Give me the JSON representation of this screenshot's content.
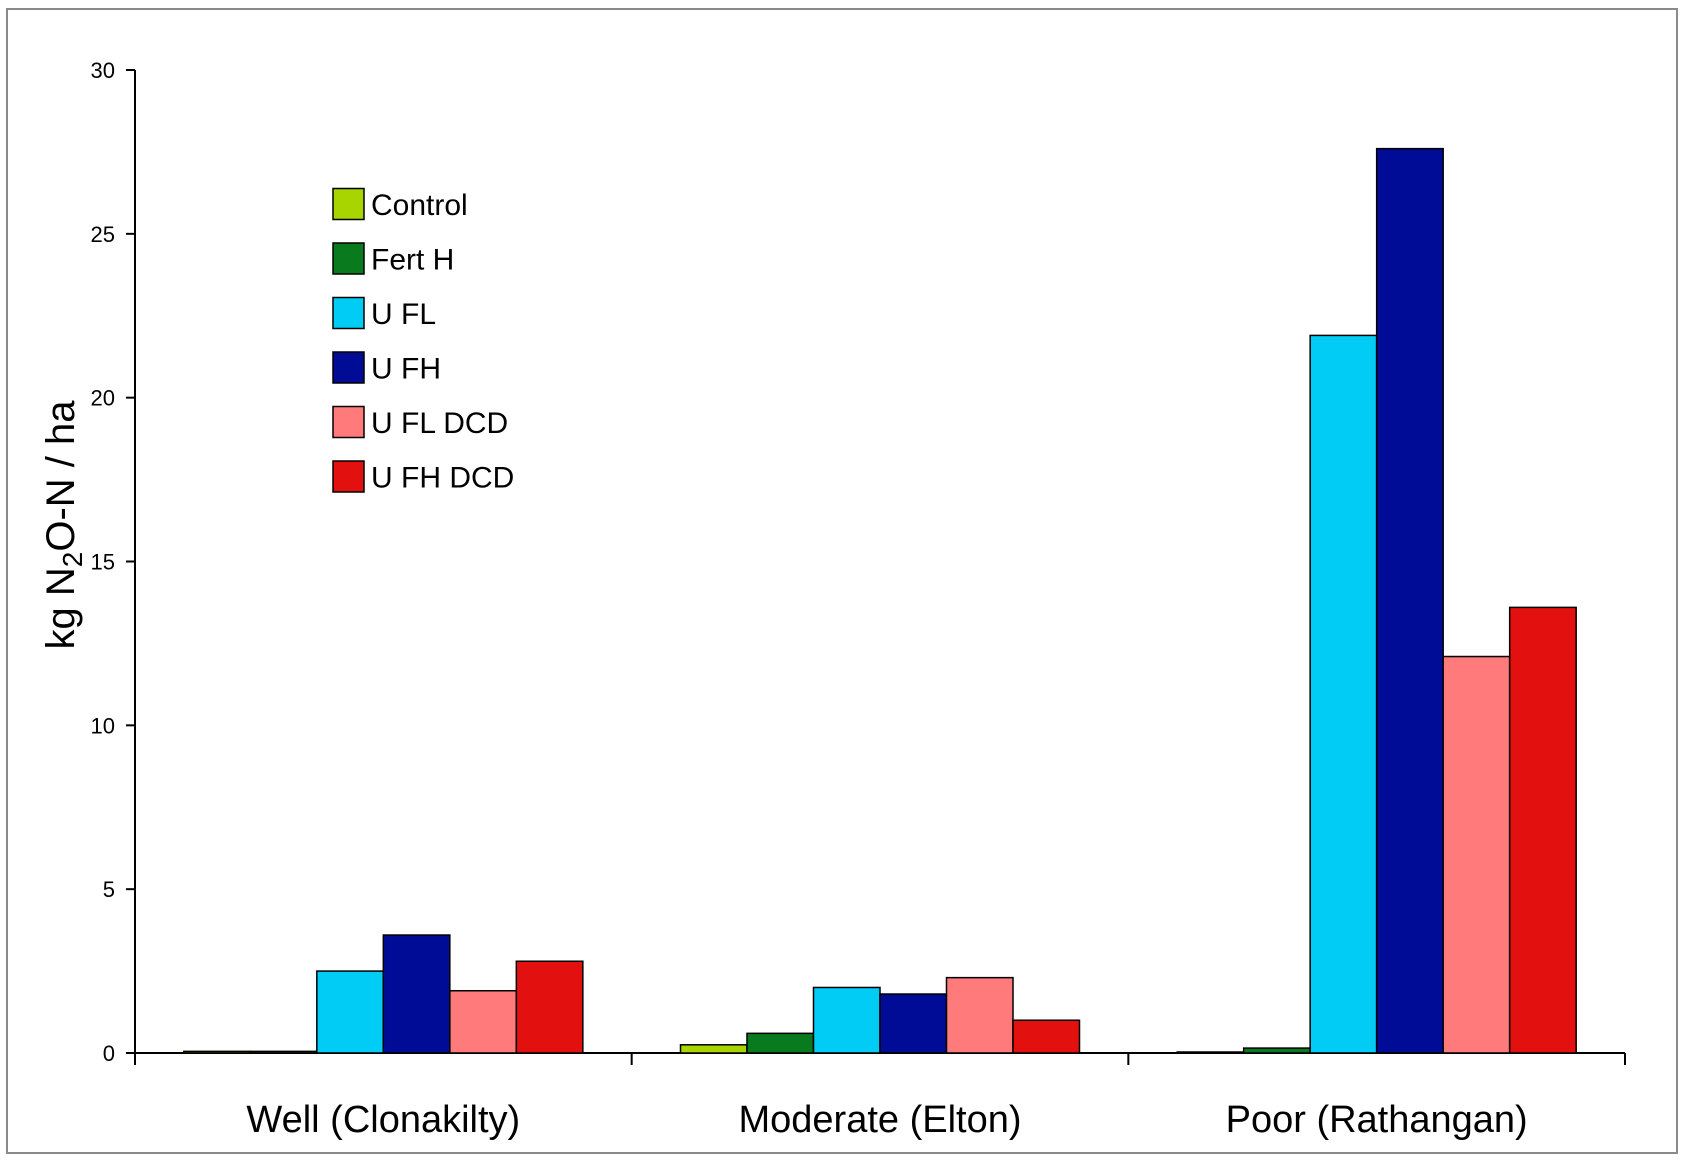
{
  "chart_data": {
    "type": "bar",
    "title": "",
    "xlabel": "",
    "ylabel": {
      "prefix": "kg N",
      "subscript": "2",
      "suffix": "O-N / ha"
    },
    "ylim": [
      0,
      30
    ],
    "yticks": [
      "0",
      "5",
      "10",
      "15",
      "20",
      "25",
      "30"
    ],
    "categories": [
      "Well (Clonakilty)",
      "Moderate (Elton)",
      "Poor (Rathangan)"
    ],
    "legend_position": "top-left",
    "grid": false,
    "series": [
      {
        "name": "Control",
        "color": "#a8d400",
        "values": [
          0.05,
          0.25,
          0.02
        ]
      },
      {
        "name": "Fert H",
        "color": "#0a7a1e",
        "values": [
          0.05,
          0.6,
          0.15
        ]
      },
      {
        "name": "U FL",
        "color": "#00ccf5",
        "values": [
          2.5,
          2.0,
          21.9
        ]
      },
      {
        "name": "U FH",
        "color": "#000c96",
        "values": [
          3.6,
          1.8,
          27.6
        ]
      },
      {
        "name": "U FL DCD",
        "color": "#ff7a7a",
        "values": [
          1.9,
          2.3,
          12.1
        ]
      },
      {
        "name": "U FH DCD",
        "color": "#e31010",
        "values": [
          2.8,
          1.0,
          13.6
        ]
      }
    ]
  }
}
